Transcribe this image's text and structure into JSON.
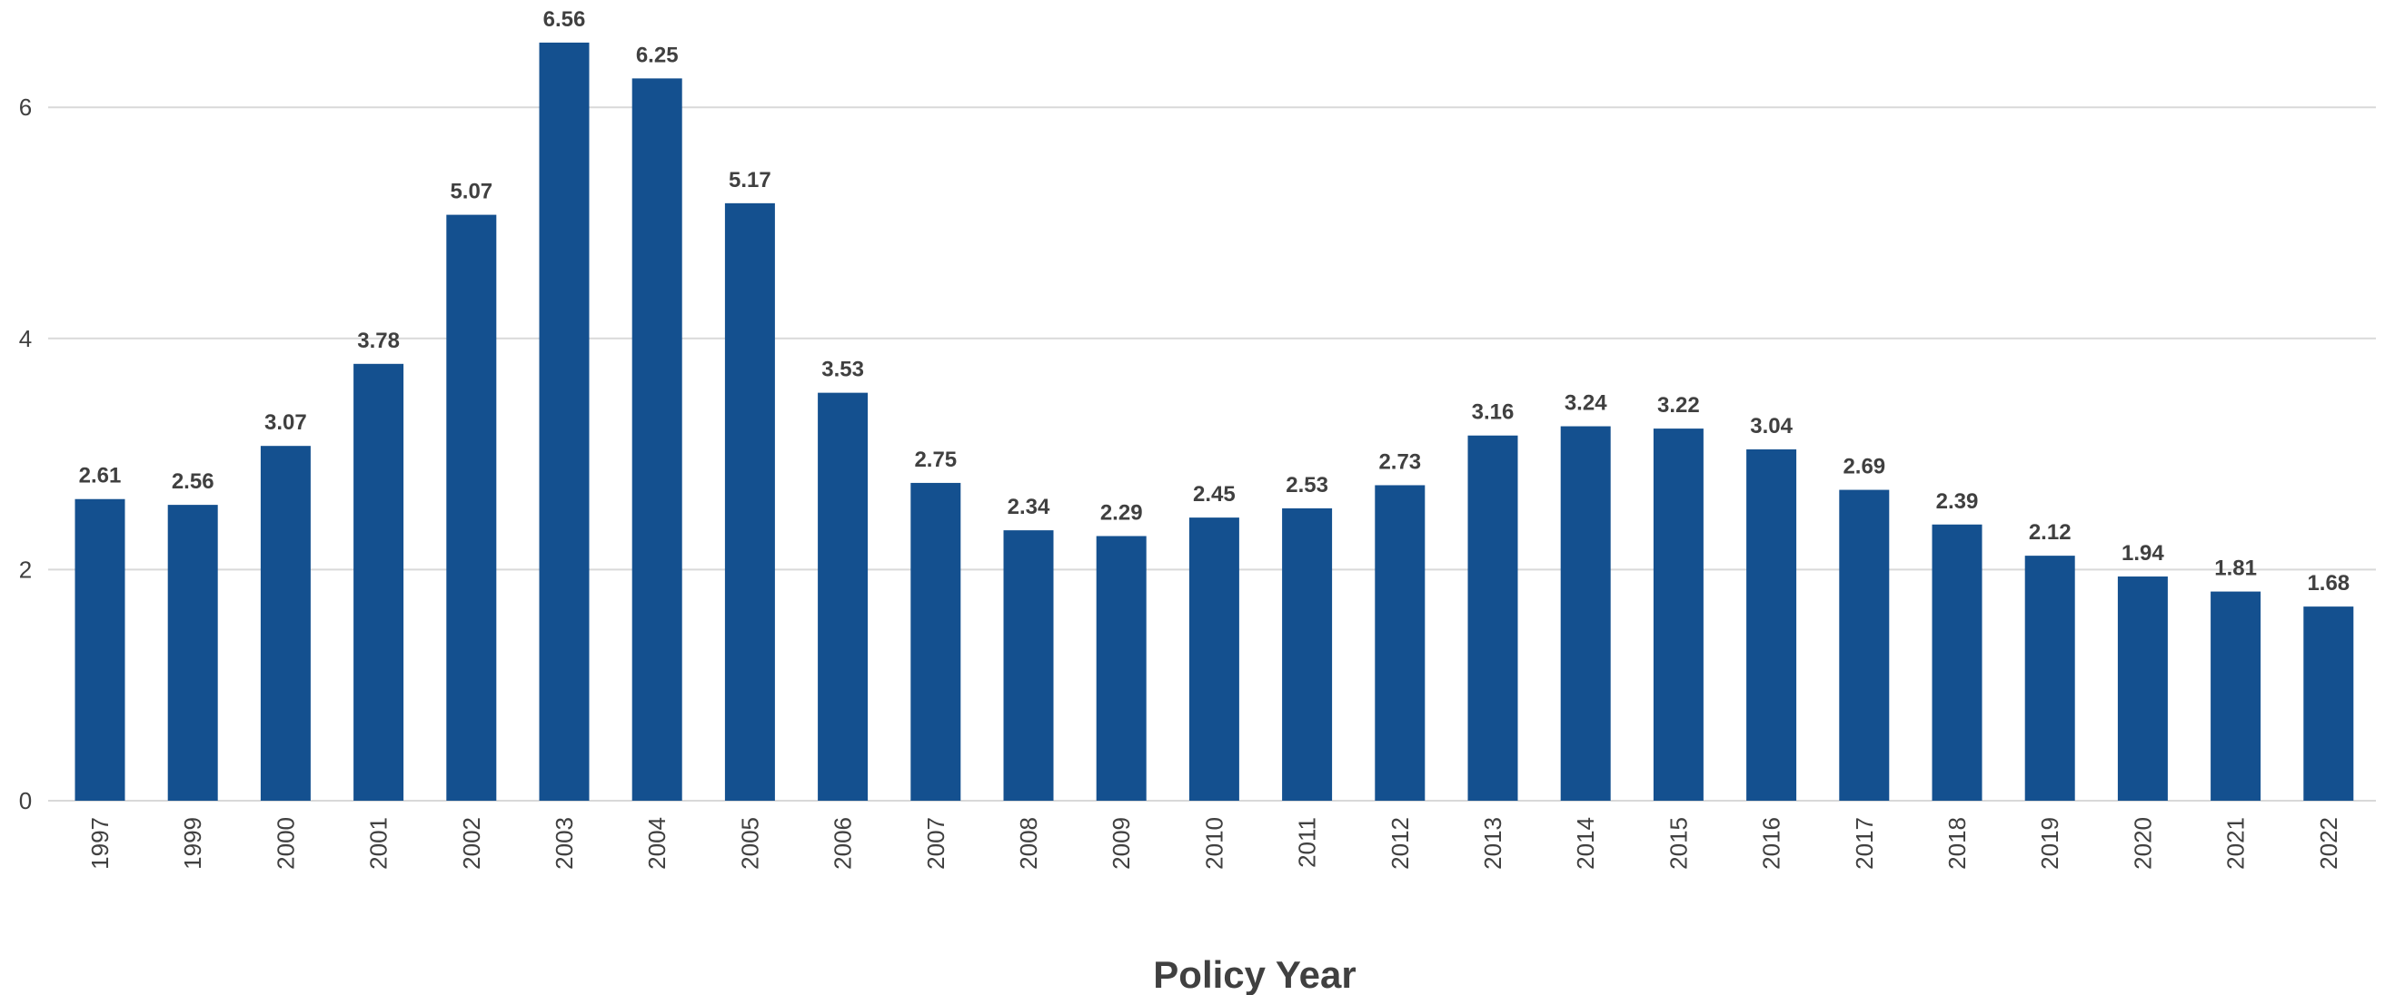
{
  "chart_data": {
    "type": "bar",
    "title": "",
    "xlabel": "Policy Year",
    "ylabel": "",
    "categories": [
      "1997",
      "1999",
      "2000",
      "2001",
      "2002",
      "2003",
      "2004",
      "2005",
      "2006",
      "2007",
      "2008",
      "2009",
      "2010",
      "2011",
      "2012",
      "2013",
      "2014",
      "2015",
      "2016",
      "2017",
      "2018",
      "2019",
      "2020",
      "2021",
      "2022"
    ],
    "values": [
      2.61,
      2.56,
      3.07,
      3.78,
      5.07,
      6.56,
      6.25,
      5.17,
      3.53,
      2.75,
      2.34,
      2.29,
      2.45,
      2.53,
      2.73,
      3.16,
      3.24,
      3.22,
      3.04,
      2.69,
      2.39,
      2.12,
      1.94,
      1.81,
      1.68
    ],
    "data_labels": [
      "2.61",
      "2.56",
      "3.07",
      "3.78",
      "5.07",
      "6.56",
      "6.25",
      "5.17",
      "3.53",
      "2.75",
      "2.34",
      "2.29",
      "2.45",
      "2.53",
      "2.73",
      "3.16",
      "3.24",
      "3.22",
      "3.04",
      "2.69",
      "2.39",
      "2.12",
      "1.94",
      "1.81",
      "1.68"
    ],
    "yticks": [
      0,
      2,
      4,
      6
    ],
    "ytick_labels": [
      "0",
      "2",
      "4",
      "6"
    ],
    "ylim": [
      0,
      7
    ],
    "grid": true,
    "legend": "none",
    "bar_color": "#14508f"
  }
}
